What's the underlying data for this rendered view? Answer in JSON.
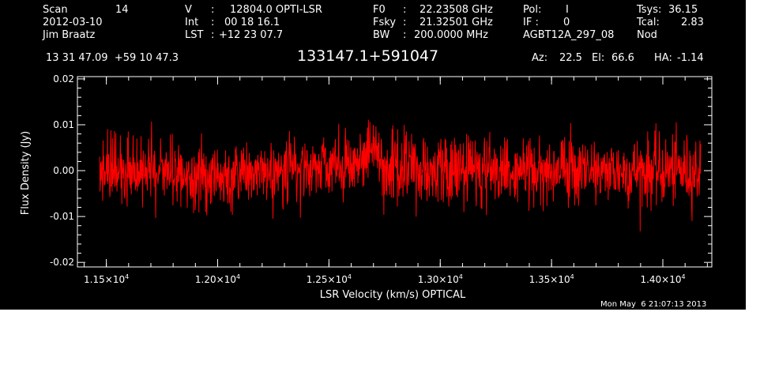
{
  "header": {
    "col1": {
      "scan_label": "Scan",
      "scan_value": "14",
      "date": "2012-03-10",
      "observer": "Jim Braatz"
    },
    "col2": {
      "v_label": "V",
      "v_sep": ":",
      "v_value": "12804.0 OPTI-LSR",
      "int_label": "Int",
      "int_sep": ":",
      "int_value": "00 18 16.1",
      "lst_label": "LST",
      "lst_sep": ":",
      "lst_value": "+12 23 07.7"
    },
    "col3": {
      "f0_label": "F0",
      "f0_sep": ":",
      "f0_value": "22.23508 GHz",
      "fsky_label": "Fsky",
      "fsky_sep": ":",
      "fsky_value": "21.32501 GHz",
      "bw_label": "BW",
      "bw_sep": ":",
      "bw_value": "200.0000 MHz"
    },
    "col4": {
      "pol_label": "Pol:",
      "pol_value": "I",
      "if_label": "IF :",
      "if_value": "0",
      "project": "AGBT12A_297_08"
    },
    "col5": {
      "tsys_label": "Tsys:",
      "tsys_value": "36.15",
      "tcal_label": "Tcal:",
      "tcal_value": "2.83",
      "mode": "Nod"
    },
    "coords": "13 31 47.09  +59 10 47.3",
    "source": "133147.1+591047",
    "az_label": "Az:",
    "az_value": "22.5",
    "el_label": "El:",
    "el_value": "66.6",
    "ha_label": "HA:",
    "ha_value": "-1.14"
  },
  "footer": {
    "timestamp": "Mon May  6 21:07:13 2013"
  },
  "colors": {
    "background": "#000000",
    "axes": "#ffffff",
    "trace": "#ff0000",
    "page": "#ffffff"
  },
  "chart_data": {
    "type": "line",
    "title": "133147.1+591047",
    "xlabel": "LSR Velocity (km/s) OPTICAL",
    "ylabel": "Flux Density (Jy)",
    "xlim": [
      11370,
      14220
    ],
    "ylim": [
      -0.021,
      0.0205
    ],
    "xticks": [
      {
        "value": 11500,
        "mantissa": "1.15",
        "exp": "4"
      },
      {
        "value": 12000,
        "mantissa": "1.20",
        "exp": "4"
      },
      {
        "value": 12500,
        "mantissa": "1.25",
        "exp": "4"
      },
      {
        "value": 13000,
        "mantissa": "1.30",
        "exp": "4"
      },
      {
        "value": 13500,
        "mantissa": "1.35",
        "exp": "4"
      },
      {
        "value": 14000,
        "mantissa": "1.40",
        "exp": "4"
      }
    ],
    "yticks": [
      {
        "value": -0.02,
        "label": "-0.02"
      },
      {
        "value": -0.01,
        "label": "-0.01"
      },
      {
        "value": 0.0,
        "label": "0.00"
      },
      {
        "value": 0.01,
        "label": "0.01"
      },
      {
        "value": 0.02,
        "label": "0.02"
      }
    ],
    "series": [
      {
        "color": "#ff0000",
        "x_start": 11470,
        "x_end": 14170,
        "n_points": 1600,
        "noise_rms": 0.0038,
        "baseline_knots": [
          [
            11470,
            0.0
          ],
          [
            11700,
            0.0
          ],
          [
            11900,
            -0.0005
          ],
          [
            11950,
            -0.002
          ],
          [
            12050,
            -0.002
          ],
          [
            12200,
            0.0
          ],
          [
            12400,
            0.0005
          ],
          [
            12550,
            0.001
          ],
          [
            12650,
            0.002
          ],
          [
            12700,
            0.0035
          ],
          [
            12750,
            0.0025
          ],
          [
            12850,
            0.0
          ],
          [
            13000,
            0.0
          ],
          [
            13200,
            0.0
          ],
          [
            13300,
            -0.0005
          ],
          [
            13500,
            0.0
          ],
          [
            13800,
            0.0
          ],
          [
            14000,
            0.0
          ],
          [
            14170,
            0.0
          ]
        ]
      }
    ]
  }
}
